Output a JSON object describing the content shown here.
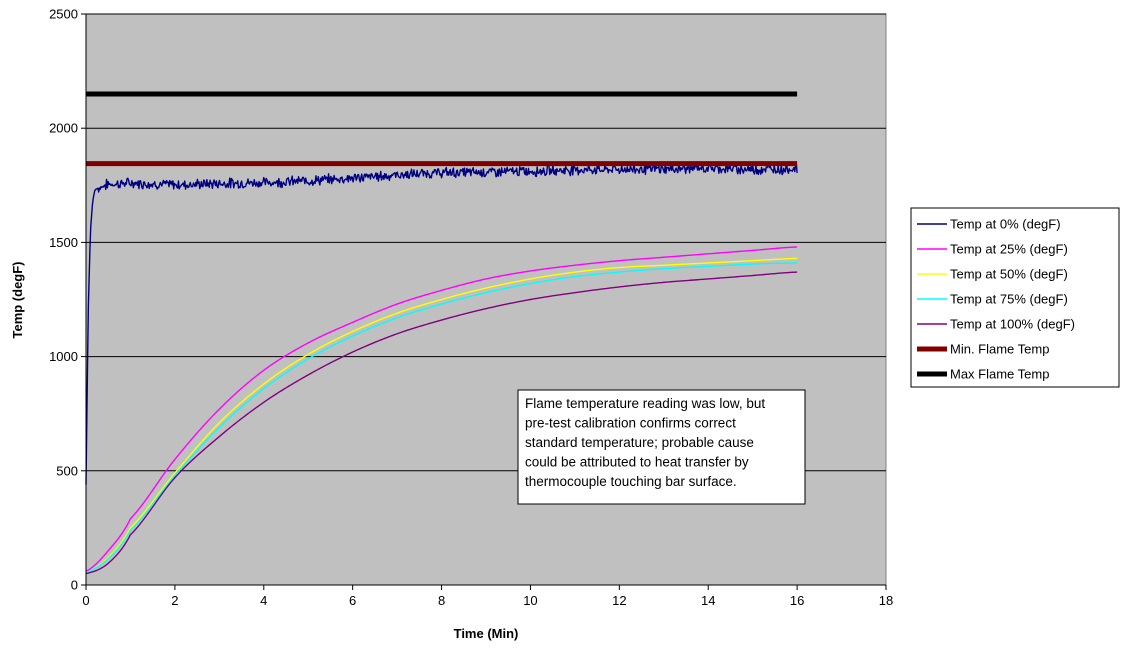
{
  "chart_data": {
    "type": "line",
    "xlabel": "Time (Min)",
    "ylabel": "Temp (degF)",
    "xlim": [
      0,
      18
    ],
    "ylim": [
      0,
      2500
    ],
    "xticks": [
      0,
      2,
      4,
      6,
      8,
      10,
      12,
      14,
      16,
      18
    ],
    "yticks": [
      0,
      500,
      1000,
      1500,
      2000,
      2500
    ],
    "grid": "horizontal",
    "plot_background": "#c0c0c0",
    "legend_position": "right",
    "annotation": "Flame temperature reading was low, but pre-test calibration confirms correct standard temperature; probable cause could be attributed to heat transfer by thermocouple touching bar surface.",
    "annotation_lines": [
      "Flame temperature reading was low, but",
      "pre-test calibration confirms correct",
      "standard temperature; probable cause",
      "could be attributed to heat transfer by",
      "thermocouple touching bar surface."
    ],
    "series": [
      {
        "name": "Temp at 0% (degF)",
        "color": "#000080",
        "noise": true,
        "x": [
          0,
          0.05,
          0.1,
          0.15,
          0.2,
          0.3,
          0.5,
          1,
          2,
          3,
          4,
          5,
          6,
          7,
          8,
          9,
          10,
          11,
          12,
          13,
          14,
          15,
          16
        ],
        "y": [
          440,
          1200,
          1550,
          1680,
          1730,
          1740,
          1755,
          1760,
          1752,
          1758,
          1762,
          1770,
          1782,
          1795,
          1805,
          1808,
          1812,
          1818,
          1820,
          1822,
          1825,
          1820,
          1822
        ]
      },
      {
        "name": "Temp at 25% (degF)",
        "color": "#ff00ff",
        "x": [
          0,
          0.5,
          1,
          2,
          3,
          4,
          5,
          6,
          7,
          8,
          9,
          10,
          11,
          12,
          13,
          14,
          15,
          16
        ],
        "y": [
          60,
          150,
          290,
          550,
          770,
          940,
          1060,
          1150,
          1230,
          1290,
          1340,
          1375,
          1400,
          1420,
          1435,
          1450,
          1465,
          1480
        ]
      },
      {
        "name": "Temp at 50% (degF)",
        "color": "#ffff00",
        "x": [
          0,
          0.5,
          1,
          2,
          3,
          4,
          5,
          6,
          7,
          8,
          9,
          10,
          11,
          12,
          13,
          14,
          15,
          16
        ],
        "y": [
          55,
          120,
          250,
          490,
          710,
          880,
          1010,
          1110,
          1190,
          1250,
          1300,
          1340,
          1370,
          1390,
          1400,
          1410,
          1420,
          1430
        ]
      },
      {
        "name": "Temp at 75% (degF)",
        "color": "#00ffff",
        "x": [
          0,
          0.5,
          1,
          2,
          3,
          4,
          5,
          6,
          7,
          8,
          9,
          10,
          11,
          12,
          13,
          14,
          15,
          16
        ],
        "y": [
          55,
          115,
          240,
          480,
          690,
          860,
          990,
          1090,
          1170,
          1230,
          1280,
          1320,
          1350,
          1370,
          1385,
          1395,
          1405,
          1410
        ]
      },
      {
        "name": "Temp at 100% (degF)",
        "color": "#800080",
        "x": [
          0,
          0.5,
          1,
          2,
          3,
          4,
          5,
          6,
          7,
          8,
          9,
          10,
          11,
          12,
          13,
          14,
          15,
          16
        ],
        "y": [
          50,
          95,
          220,
          470,
          650,
          800,
          920,
          1020,
          1100,
          1160,
          1210,
          1250,
          1280,
          1305,
          1325,
          1340,
          1355,
          1370
        ]
      },
      {
        "name": "Min. Flame Temp",
        "color": "#800000",
        "x": [
          0,
          16
        ],
        "y": [
          1845,
          1845
        ]
      },
      {
        "name": "Max Flame Temp",
        "color": "#000000",
        "x": [
          0,
          16
        ],
        "y": [
          2150,
          2150
        ]
      }
    ]
  }
}
